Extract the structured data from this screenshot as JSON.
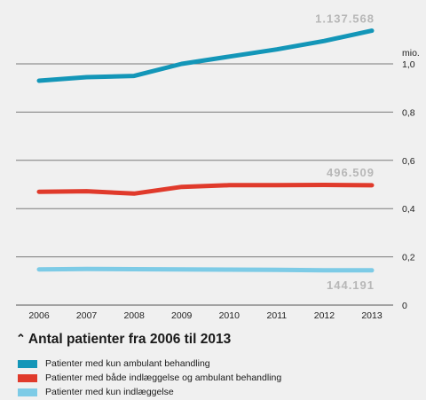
{
  "chart_data": {
    "type": "line",
    "title": "Antal patienter fra 2006 til 2013",
    "x": [
      "2006",
      "2007",
      "2008",
      "2009",
      "2010",
      "2011",
      "2012",
      "2013"
    ],
    "y_unit_label": "mio.",
    "y_ticks": [
      "0",
      "0,2",
      "0,4",
      "0,6",
      "0,8",
      "1,0"
    ],
    "y_tick_values": [
      0,
      0.2,
      0.4,
      0.6,
      0.8,
      1.0
    ],
    "ylim": [
      0,
      1.2
    ],
    "grid": true,
    "series": [
      {
        "name": "Patienter med kun ambulant behandling",
        "color": "#1396b8",
        "values": [
          0.93,
          0.945,
          0.95,
          1.0,
          1.03,
          1.06,
          1.095,
          1.137568
        ],
        "end_label": "1.137.568"
      },
      {
        "name": "Patienter med både indlæggelse og ambulant behandling",
        "color": "#e03a2b",
        "values": [
          0.47,
          0.472,
          0.462,
          0.49,
          0.497,
          0.497,
          0.498,
          0.496509
        ],
        "end_label": "496.509"
      },
      {
        "name": "Patienter med kun indlæggelse",
        "color": "#7dcbe6",
        "values": [
          0.148,
          0.15,
          0.149,
          0.148,
          0.147,
          0.146,
          0.144,
          0.144191
        ],
        "end_label": "144.191"
      }
    ]
  },
  "title_glyph": "⌃"
}
